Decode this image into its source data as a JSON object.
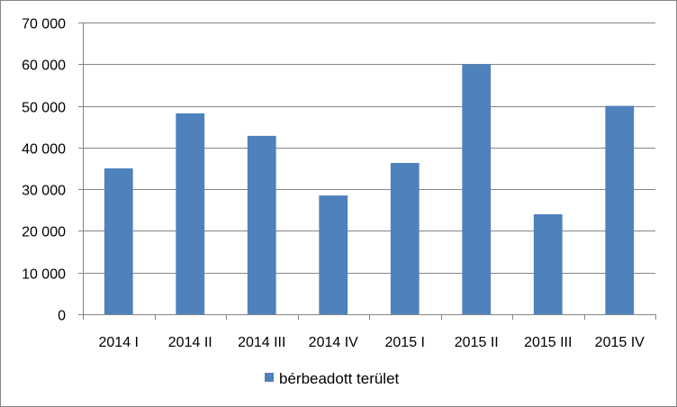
{
  "chart_data": {
    "type": "bar",
    "categories": [
      "2014 I",
      "2014 II",
      "2014 III",
      "2014 IV",
      "2015 I",
      "2015 II",
      "2015 III",
      "2015 IV"
    ],
    "series": [
      {
        "name": "bérbeadott terület",
        "values": [
          35000,
          48200,
          42800,
          28500,
          36300,
          60000,
          24000,
          50000
        ],
        "color": "#4f81bd"
      }
    ],
    "y_ticks": [
      "0",
      "10 000",
      "20 000",
      "30 000",
      "40 000",
      "50 000",
      "60 000",
      "70 000"
    ],
    "ylim": [
      0,
      70000
    ],
    "y_step": 10000,
    "grid": true,
    "legend_position": "bottom",
    "title": "",
    "xlabel": "",
    "ylabel": ""
  }
}
